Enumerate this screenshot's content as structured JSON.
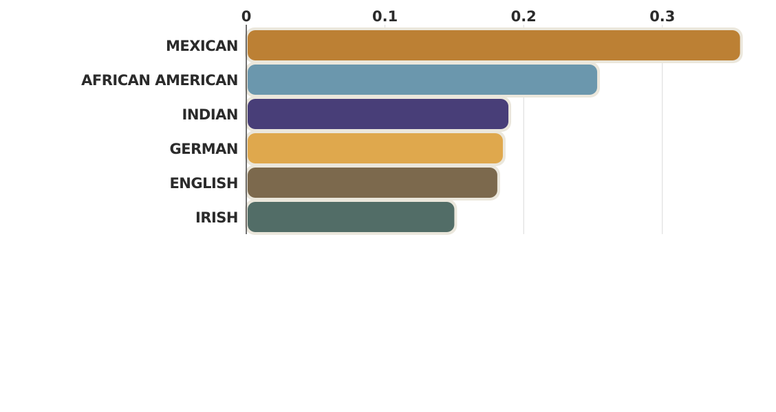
{
  "chart_data": {
    "type": "bar",
    "orientation": "horizontal",
    "categories": [
      "MEXICAN",
      "AFRICAN AMERICAN",
      "INDIAN",
      "GERMAN",
      "ENGLISH",
      "IRISH"
    ],
    "values": [
      0.356,
      0.253,
      0.189,
      0.185,
      0.181,
      0.15
    ],
    "colors": [
      "#b97a2a",
      "#6492aa",
      "#3f3572",
      "#dea445",
      "#766245",
      "#4a6660"
    ],
    "x_ticks": [
      "0",
      "0.1",
      "0.2",
      "0.3"
    ],
    "x_tick_values": [
      0,
      0.1,
      0.2,
      0.3
    ],
    "xlim": [
      0,
      0.36
    ],
    "title": "",
    "xlabel": "",
    "ylabel": "",
    "grid": true,
    "axis_position": "top"
  }
}
